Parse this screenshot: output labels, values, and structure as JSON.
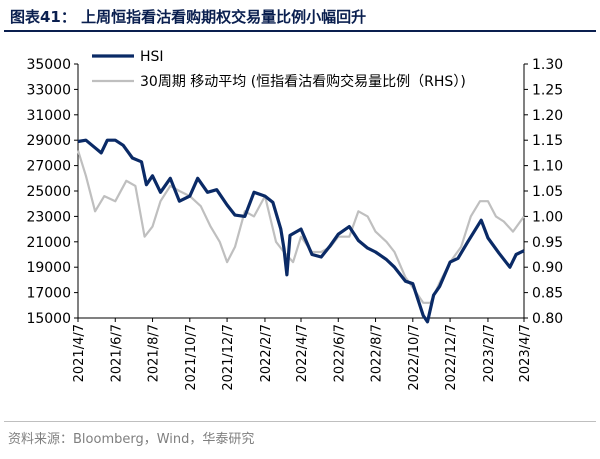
{
  "header": {
    "title": "图表41：  上周恒指看沽看购期权交易量比例小幅回升"
  },
  "footer": {
    "source": "资料来源：Bloomberg，Wind，华泰研究"
  },
  "colors": {
    "hsi": "#0a2a66",
    "ratio": "#bfbfbf",
    "title": "#0a1f4f"
  },
  "chart_data": {
    "type": "line",
    "x_ticks": [
      "2021/4/7",
      "2021/6/7",
      "2021/8/7",
      "2021/10/7",
      "2021/12/7",
      "2022/2/7",
      "2022/4/7",
      "2022/6/7",
      "2022/8/7",
      "2022/10/7",
      "2022/12/7",
      "2023/2/7",
      "2023/4/7"
    ],
    "y_left": {
      "min": 15000,
      "max": 35000,
      "ticks": [
        "15000",
        "17000",
        "19000",
        "21000",
        "23000",
        "25000",
        "27000",
        "29000",
        "31000",
        "33000",
        "35000"
      ]
    },
    "y_right": {
      "min": 0.8,
      "max": 1.3,
      "ticks": [
        "0.80",
        "0.85",
        "0.90",
        "0.95",
        "1.00",
        "1.05",
        "1.10",
        "1.15",
        "1.20",
        "1.25",
        "1.30"
      ]
    },
    "series": [
      {
        "name": "HSI",
        "axis": "left",
        "points": [
          [
            "2021/4/7",
            28900
          ],
          [
            "2021/4/20",
            29000
          ],
          [
            "2021/5/5",
            28400
          ],
          [
            "2021/5/15",
            28000
          ],
          [
            "2021/5/25",
            29000
          ],
          [
            "2021/6/7",
            29000
          ],
          [
            "2021/6/20",
            28600
          ],
          [
            "2021/7/5",
            27600
          ],
          [
            "2021/7/20",
            27300
          ],
          [
            "2021/7/28",
            25500
          ],
          [
            "2021/8/7",
            26200
          ],
          [
            "2021/8/20",
            24900
          ],
          [
            "2021/9/5",
            26000
          ],
          [
            "2021/9/20",
            24200
          ],
          [
            "2021/10/7",
            24600
          ],
          [
            "2021/10/20",
            26000
          ],
          [
            "2021/11/5",
            24900
          ],
          [
            "2021/11/20",
            25100
          ],
          [
            "2021/12/7",
            23900
          ],
          [
            "2021/12/20",
            23100
          ],
          [
            "2022/1/5",
            23000
          ],
          [
            "2022/1/20",
            24900
          ],
          [
            "2022/2/7",
            24600
          ],
          [
            "2022/2/20",
            24100
          ],
          [
            "2022/3/5",
            22000
          ],
          [
            "2022/3/10",
            20500
          ],
          [
            "2022/3/15",
            18400
          ],
          [
            "2022/3/20",
            21500
          ],
          [
            "2022/4/7",
            22000
          ],
          [
            "2022/4/25",
            20000
          ],
          [
            "2022/5/10",
            19800
          ],
          [
            "2022/5/25",
            20700
          ],
          [
            "2022/6/7",
            21600
          ],
          [
            "2022/6/25",
            22200
          ],
          [
            "2022/7/10",
            21100
          ],
          [
            "2022/7/25",
            20500
          ],
          [
            "2022/8/7",
            20200
          ],
          [
            "2022/8/25",
            19600
          ],
          [
            "2022/9/7",
            19000
          ],
          [
            "2022/9/25",
            17900
          ],
          [
            "2022/10/7",
            17700
          ],
          [
            "2022/10/24",
            15200
          ],
          [
            "2022/10/31",
            14700
          ],
          [
            "2022/11/10",
            16800
          ],
          [
            "2022/11/20",
            17500
          ],
          [
            "2022/12/7",
            19400
          ],
          [
            "2022/12/20",
            19700
          ],
          [
            "2023/1/5",
            21000
          ],
          [
            "2023/1/27",
            22700
          ],
          [
            "2023/2/7",
            21300
          ],
          [
            "2023/2/25",
            20100
          ],
          [
            "2023/3/15",
            19000
          ],
          [
            "2023/3/25",
            20000
          ],
          [
            "2023/4/7",
            20300
          ]
        ]
      },
      {
        "name": "30周期 移动平均 (恒指看沽看购交易量比例（RHS）)",
        "axis": "right",
        "points": [
          [
            "2021/4/7",
            1.13
          ],
          [
            "2021/4/20",
            1.08
          ],
          [
            "2021/5/5",
            1.01
          ],
          [
            "2021/5/20",
            1.04
          ],
          [
            "2021/6/7",
            1.03
          ],
          [
            "2021/6/25",
            1.07
          ],
          [
            "2021/7/10",
            1.06
          ],
          [
            "2021/7/25",
            0.96
          ],
          [
            "2021/8/7",
            0.98
          ],
          [
            "2021/8/20",
            1.03
          ],
          [
            "2021/9/5",
            1.06
          ],
          [
            "2021/9/20",
            1.05
          ],
          [
            "2021/10/7",
            1.04
          ],
          [
            "2021/10/25",
            1.02
          ],
          [
            "2021/11/10",
            0.98
          ],
          [
            "2021/11/25",
            0.95
          ],
          [
            "2021/12/7",
            0.91
          ],
          [
            "2021/12/20",
            0.94
          ],
          [
            "2022/1/5",
            1.01
          ],
          [
            "2022/1/20",
            1.0
          ],
          [
            "2022/2/7",
            1.04
          ],
          [
            "2022/2/25",
            0.95
          ],
          [
            "2022/3/10",
            0.93
          ],
          [
            "2022/3/25",
            0.91
          ],
          [
            "2022/4/7",
            0.96
          ],
          [
            "2022/4/25",
            0.93
          ],
          [
            "2022/5/10",
            0.93
          ],
          [
            "2022/5/25",
            0.94
          ],
          [
            "2022/6/7",
            0.96
          ],
          [
            "2022/6/25",
            0.96
          ],
          [
            "2022/7/10",
            1.01
          ],
          [
            "2022/7/25",
            1.0
          ],
          [
            "2022/8/7",
            0.97
          ],
          [
            "2022/8/25",
            0.95
          ],
          [
            "2022/9/7",
            0.93
          ],
          [
            "2022/9/25",
            0.88
          ],
          [
            "2022/10/7",
            0.86
          ],
          [
            "2022/10/24",
            0.83
          ],
          [
            "2022/11/5",
            0.83
          ],
          [
            "2022/11/20",
            0.87
          ],
          [
            "2022/12/7",
            0.91
          ],
          [
            "2022/12/25",
            0.94
          ],
          [
            "2023/1/10",
            1.0
          ],
          [
            "2023/1/25",
            1.03
          ],
          [
            "2023/2/7",
            1.03
          ],
          [
            "2023/2/20",
            1.0
          ],
          [
            "2023/3/5",
            0.99
          ],
          [
            "2023/3/20",
            0.97
          ],
          [
            "2023/4/7",
            1.0
          ]
        ]
      }
    ],
    "legend_position": "top-left",
    "grid": false
  }
}
